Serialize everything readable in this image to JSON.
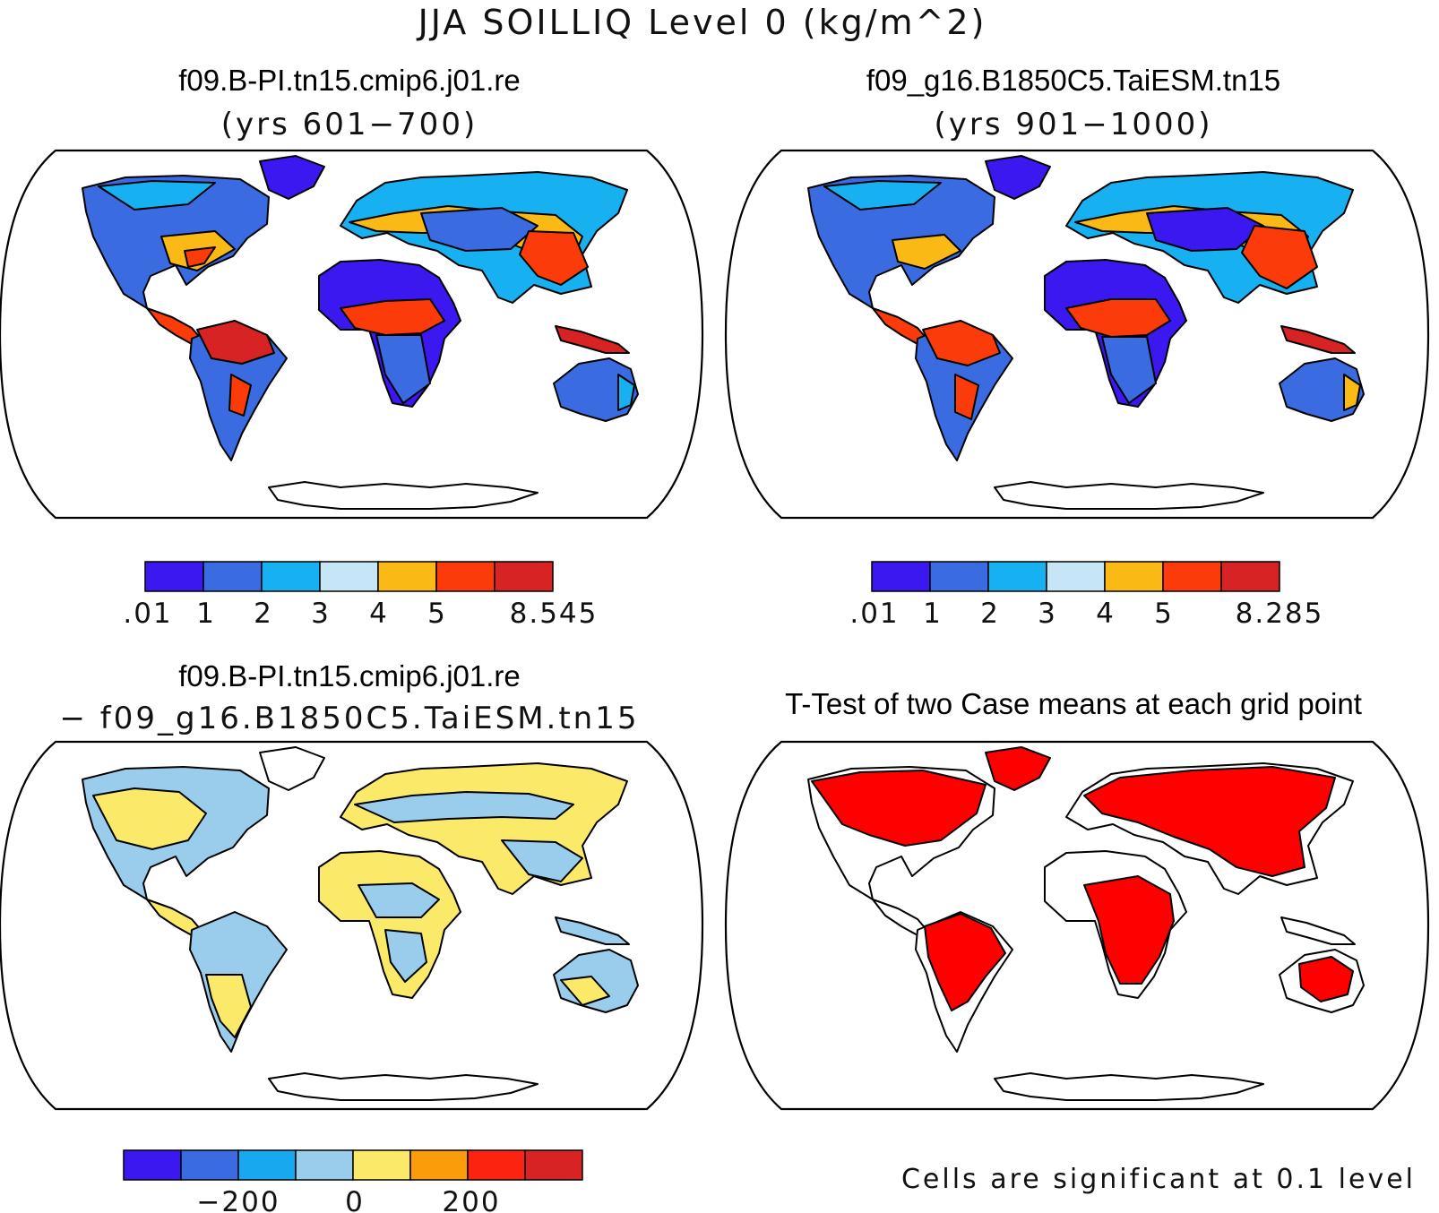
{
  "title": "JJA SOILLIQ Level 0 (kg/m^2)",
  "panels": [
    {
      "case": "f09.B-PI.tn15.cmip6.j01.re",
      "subtitle": "(yrs 601−700)",
      "colorbar": {
        "colors": [
          "#3c18f0",
          "#3a6be0",
          "#17b0f0",
          "#c6e6f6",
          "#fbb915",
          "#fc3b0a",
          "#d72323"
        ],
        "labels": [
          ".01",
          "1",
          "2",
          "3",
          "4",
          "5",
          "8.545"
        ]
      }
    },
    {
      "case": "f09_g16.B1850C5.TaiESM.tn15",
      "subtitle": "(yrs 901−1000)",
      "colorbar": {
        "colors": [
          "#3c18f0",
          "#3a6be0",
          "#17b0f0",
          "#c6e6f6",
          "#fbb915",
          "#fc3b0a",
          "#d72323"
        ],
        "labels": [
          ".01",
          "1",
          "2",
          "3",
          "4",
          "5",
          "8.285"
        ]
      }
    },
    {
      "case": "f09.B-PI.tn15.cmip6.j01.re",
      "subtitle": "− f09_g16.B1850C5.TaiESM.tn15",
      "colorbar": {
        "colors": [
          "#3c18f0",
          "#3a6be0",
          "#17a8f0",
          "#9acdec",
          "#fbe96a",
          "#fb9c0a",
          "#fc2410",
          "#d72323"
        ],
        "labels": [
          "−200",
          "0",
          "200"
        ]
      }
    },
    {
      "title": "T-Test of two Case means at each grid point",
      "note": "Cells are significant at 0.1 level",
      "colors": {
        "significant": "#ff0000"
      }
    }
  ]
}
